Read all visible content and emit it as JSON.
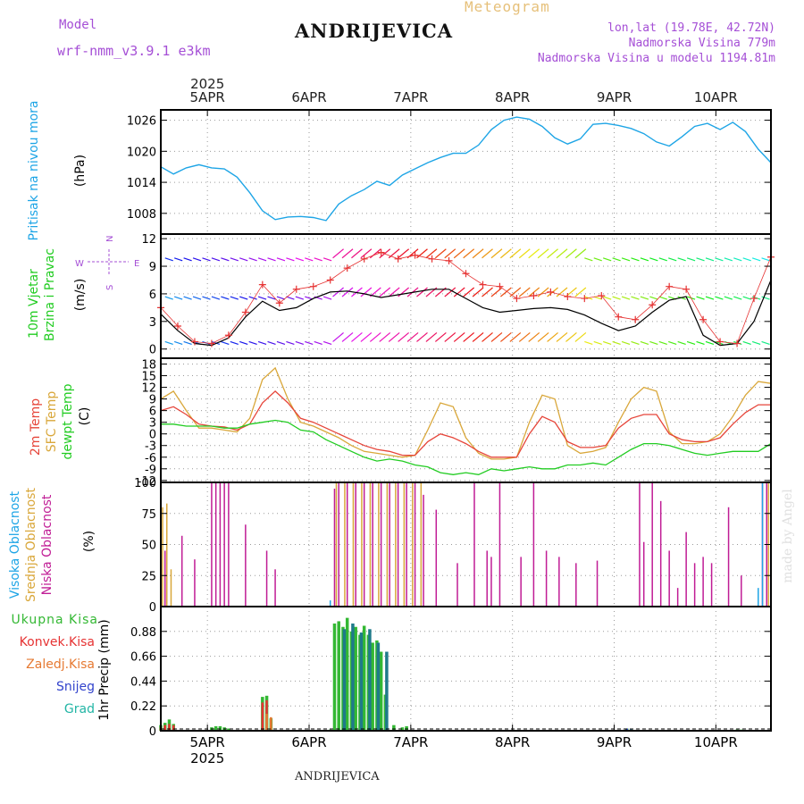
{
  "header": {
    "model_label": "Model",
    "model_name": "wrf-nmm_v3.9.1 e3km",
    "chart_type": "Meteogram",
    "station": "ANDRIJEVICA",
    "lonlat": "lon,lat (19.78E, 42.72N)",
    "altitude": "Nadmorska Visina 779m",
    "model_altitude": "Nadmorska Visina u modelu 1194.81m",
    "watermark": "made by Angel",
    "footer_station": "ANDRIJEVICA"
  },
  "colors": {
    "pressure": "#1ea5e6",
    "temp2m": "#e6453a",
    "sfc": "#d9a73a",
    "dewpt": "#22cc22",
    "cloud_high": "#1ea5e6",
    "cloud_mid": "#d9a73a",
    "cloud_low": "#c01c95",
    "precip_total": "#33b833",
    "precip_conv": "#e63333",
    "precip_frozen": "#e67a33",
    "precip_snow": "#3344cc",
    "precip_hail": "#22b5a5",
    "model_text": "#a54fd6",
    "wind_text": "#22cc22",
    "wind_speed": "#e63333",
    "gust": "#000000"
  },
  "chart_data": [
    {
      "type": "line",
      "name": "sea-level-pressure",
      "ylabel": "Pritisak na nivou mora",
      "unit": "(hPa)",
      "ylim": [
        1004,
        1028
      ],
      "yticks": [
        1008,
        1014,
        1020,
        1026
      ],
      "x": [
        0,
        3,
        6,
        9,
        12,
        15,
        18,
        21,
        24,
        27,
        30,
        33,
        36,
        39,
        42,
        45,
        48,
        51,
        54,
        57,
        60,
        63,
        66,
        69,
        72,
        75,
        78,
        81,
        84,
        87,
        90,
        93,
        96,
        99,
        102,
        105,
        108,
        111,
        114,
        117,
        120,
        123,
        126,
        129,
        132,
        135,
        138,
        141,
        144
      ],
      "series": [
        {
          "name": "Pritisak",
          "values": [
            1017,
            1015.6,
            1016.8,
            1017.4,
            1016.8,
            1016.6,
            1015,
            1012,
            1008.5,
            1006.8,
            1007.3,
            1007.4,
            1007.2,
            1006.6,
            1009.8,
            1011.4,
            1012.6,
            1014.2,
            1013.4,
            1015.4,
            1016.6,
            1017.8,
            1018.8,
            1019.6,
            1019.6,
            1021.2,
            1024.2,
            1026,
            1026.6,
            1026.2,
            1024.8,
            1022.6,
            1021.4,
            1022.4,
            1025.2,
            1025.4,
            1025,
            1024.4,
            1023.4,
            1021.8,
            1021,
            1022.8,
            1024.8,
            1025.4,
            1024.2,
            1025.6,
            1023.8,
            1020.4,
            1017.8
          ]
        }
      ]
    },
    {
      "type": "line",
      "name": "wind",
      "ylabel": [
        "10m Vjetar",
        "Brzina i Pravac"
      ],
      "unit": "(m/s)",
      "compass": {
        "n": "N",
        "w": "W",
        "e": "E",
        "s": "S"
      },
      "ylim": [
        -1,
        12.5
      ],
      "yticks": [
        0,
        3,
        6,
        9,
        12
      ],
      "x": [
        0,
        4,
        8,
        12,
        16,
        20,
        24,
        28,
        32,
        36,
        40,
        44,
        48,
        52,
        56,
        60,
        64,
        68,
        72,
        76,
        80,
        84,
        88,
        92,
        96,
        100,
        104,
        108,
        112,
        116,
        120,
        124,
        128,
        132,
        136,
        140,
        144
      ],
      "series": [
        {
          "name": "Brzina vjetra",
          "values": [
            4.5,
            2.5,
            0.8,
            0.6,
            1.5,
            4,
            7,
            5,
            6.5,
            6.8,
            7.5,
            8.8,
            9.8,
            10.5,
            9.8,
            10.2,
            9.8,
            9.6,
            8.2,
            7,
            6.8,
            5.5,
            5.8,
            6.2,
            5.7,
            5.5,
            5.8,
            3.5,
            3.2,
            4.8,
            6.8,
            6.5,
            3.2,
            0.8,
            0.6,
            5.5,
            10
          ],
          "marker": "+"
        },
        {
          "name": "Udar",
          "values": [
            3.8,
            2,
            0.6,
            0.4,
            1.2,
            3.5,
            5.2,
            4.2,
            4.5,
            5.5,
            6.2,
            6.3,
            6.0,
            5.6,
            5.9,
            6.2,
            6.5,
            6.5,
            5.5,
            4.5,
            4,
            4.2,
            4.4,
            4.5,
            4.3,
            3.7,
            2.8,
            2,
            2.5,
            4,
            5.3,
            5.7,
            1.5,
            0.4,
            0.6,
            3,
            7.5
          ]
        }
      ]
    },
    {
      "type": "line",
      "name": "temperature",
      "ylabel": [
        "2m Temp",
        "SFC Temp",
        "dewpt Temp"
      ],
      "unit": "(C)",
      "ylim": [
        -12.5,
        19.5
      ],
      "yticks": [
        -12,
        -9,
        -6,
        -3,
        0,
        3,
        6,
        9,
        12,
        15,
        18
      ],
      "x": [
        0,
        3,
        6,
        9,
        12,
        15,
        18,
        21,
        24,
        27,
        30,
        33,
        36,
        39,
        42,
        45,
        48,
        51,
        54,
        57,
        60,
        63,
        66,
        69,
        72,
        75,
        78,
        81,
        84,
        87,
        90,
        93,
        96,
        99,
        102,
        105,
        108,
        111,
        114,
        117,
        120,
        123,
        126,
        129,
        132,
        135,
        138,
        141,
        144
      ],
      "series": [
        {
          "name": "2m Temp",
          "values": [
            6,
            7,
            5,
            2.5,
            2,
            1.8,
            1,
            2.5,
            8,
            11,
            8,
            4,
            3,
            1.5,
            0,
            -1.5,
            -3,
            -4,
            -4.5,
            -5.5,
            -5.5,
            -2,
            0,
            -1,
            -2.5,
            -4.5,
            -6,
            -6,
            -6,
            0,
            4.5,
            3,
            -2,
            -3.5,
            -3.5,
            -3,
            1.5,
            4,
            5,
            5,
            0,
            -1.5,
            -2,
            -2,
            -1,
            2.5,
            5.5,
            7.5,
            7.5
          ]
        },
        {
          "name": "SFC Temp",
          "values": [
            9,
            11,
            6,
            1.5,
            1.5,
            1,
            0.5,
            4,
            14,
            17,
            9,
            3,
            2,
            0.5,
            -1,
            -3,
            -4.5,
            -5,
            -5.5,
            -6,
            -5.5,
            1,
            8,
            7,
            -1,
            -5,
            -6.5,
            -6.5,
            -6,
            3,
            10,
            9,
            -3,
            -5,
            -4.5,
            -3.5,
            3,
            9,
            12,
            11,
            0.5,
            -2.5,
            -2.5,
            -2,
            0,
            4.5,
            10,
            13.5,
            13
          ]
        },
        {
          "name": "dewpt Temp",
          "values": [
            2.5,
            2.5,
            2,
            2,
            2,
            1.5,
            1.5,
            2.5,
            3,
            3.5,
            3,
            1,
            0.5,
            -1.5,
            -3,
            -4.5,
            -6,
            -7,
            -6.5,
            -7,
            -8,
            -8.5,
            -10,
            -10.5,
            -10,
            -10.5,
            -9,
            -9.5,
            -9,
            -8.5,
            -9,
            -9,
            -8,
            -8,
            -7.5,
            -8,
            -6,
            -4,
            -2.5,
            -2.5,
            -3,
            -4,
            -5,
            -5.5,
            -5,
            -4.5,
            -4.5,
            -4.5,
            -2.5
          ]
        }
      ]
    },
    {
      "type": "bar",
      "name": "cloud-cover",
      "ylabel": [
        "Visoka Oblacnost",
        "Srednja Oblacnost",
        "Niska Oblacnost"
      ],
      "unit": "(%)",
      "ylim": [
        0,
        100
      ],
      "yticks": [
        0,
        25,
        50,
        75,
        100
      ],
      "series": [
        {
          "name": "Niska",
          "x": [
            1,
            5,
            8,
            12,
            13,
            14,
            15,
            16,
            20,
            25,
            27,
            41,
            42,
            44,
            46,
            48,
            50,
            52,
            54,
            56,
            58,
            60,
            62,
            65,
            70,
            74,
            77,
            78,
            80,
            85,
            88,
            91,
            94,
            98,
            103,
            113,
            114,
            116,
            118,
            120,
            122,
            124,
            126,
            128,
            130,
            134,
            137,
            142,
            143,
            144
          ],
          "values": [
            45,
            57,
            38,
            100,
            100,
            100,
            100,
            100,
            66,
            45,
            30,
            95,
            100,
            100,
            100,
            100,
            100,
            100,
            100,
            100,
            100,
            100,
            90,
            78,
            35,
            100,
            45,
            40,
            100,
            40,
            100,
            45,
            40,
            35,
            37,
            100,
            52,
            100,
            85,
            45,
            15,
            60,
            35,
            40,
            35,
            80,
            25,
            100,
            100,
            100
          ]
        },
        {
          "name": "Srednja",
          "x": [
            0,
            1,
            2,
            41,
            43,
            45,
            47,
            49,
            51,
            53,
            55,
            57,
            59,
            61,
            143
          ],
          "values": [
            80,
            83,
            30,
            100,
            100,
            100,
            100,
            100,
            100,
            100,
            100,
            100,
            100,
            100,
            100
          ]
        },
        {
          "name": "Visoka",
          "x": [
            40,
            141,
            142,
            144
          ],
          "values": [
            5,
            15,
            100,
            100
          ]
        }
      ]
    },
    {
      "type": "bar",
      "name": "precipitation",
      "ylabel": "1hr Precip (mm)",
      "legend": [
        "Ukupna Kisa",
        "Konvek.Kisa",
        "Zaledj.Kisa",
        "Snijeg",
        "Grad"
      ],
      "ylim": [
        0,
        1.1
      ],
      "yticks": [
        0,
        0.22,
        0.44,
        0.66,
        0.88
      ],
      "series": [
        {
          "name": "Ukupna Kisa",
          "x": [
            0,
            1,
            2,
            3,
            12,
            13,
            14,
            15,
            16,
            24,
            25,
            26,
            40,
            41,
            42,
            43,
            44,
            45,
            46,
            47,
            48,
            49,
            50,
            51,
            52,
            53,
            55,
            57,
            58,
            110,
            111,
            136,
            137
          ],
          "values": [
            0.05,
            0.07,
            0.1,
            0.06,
            0.03,
            0.04,
            0.04,
            0.03,
            0.02,
            0.3,
            0.31,
            0.11,
            0.01,
            0.95,
            0.97,
            0.92,
            1.0,
            0.88,
            0.92,
            0.85,
            0.93,
            0.85,
            0.78,
            0.8,
            0.7,
            0.32,
            0.05,
            0.03,
            0.04,
            0.02,
            0.01,
            0.01,
            0.01
          ]
        },
        {
          "name": "Konvek.Kisa",
          "x": [
            0,
            1,
            2,
            3,
            24,
            25,
            26
          ],
          "values": [
            0.03,
            0.05,
            0.06,
            0.05,
            0.25,
            0.27,
            0.1
          ]
        },
        {
          "name": "Zaledj.Kisa",
          "x": [
            25,
            26
          ],
          "values": [
            0.15,
            0.12
          ]
        },
        {
          "name": "Snijeg",
          "x": [
            110,
            111
          ],
          "values": [
            0.02,
            0.01
          ]
        },
        {
          "name": "Grad",
          "x": [
            43,
            45,
            47,
            49,
            51,
            53
          ],
          "values": [
            0.9,
            0.95,
            0.87,
            0.9,
            0.78,
            0.7
          ]
        }
      ]
    }
  ],
  "time_axis": {
    "year_top": "2025",
    "year_bottom": "2025",
    "x_start_hours": 0,
    "x_end_hours": 144,
    "ticks": [
      {
        "label": "5APR",
        "hour": 11
      },
      {
        "label": "6APR",
        "hour": 35
      },
      {
        "label": "7APR",
        "hour": 59
      },
      {
        "label": "8APR",
        "hour": 83
      },
      {
        "label": "9APR",
        "hour": 107
      },
      {
        "label": "10APR",
        "hour": 131
      }
    ]
  }
}
